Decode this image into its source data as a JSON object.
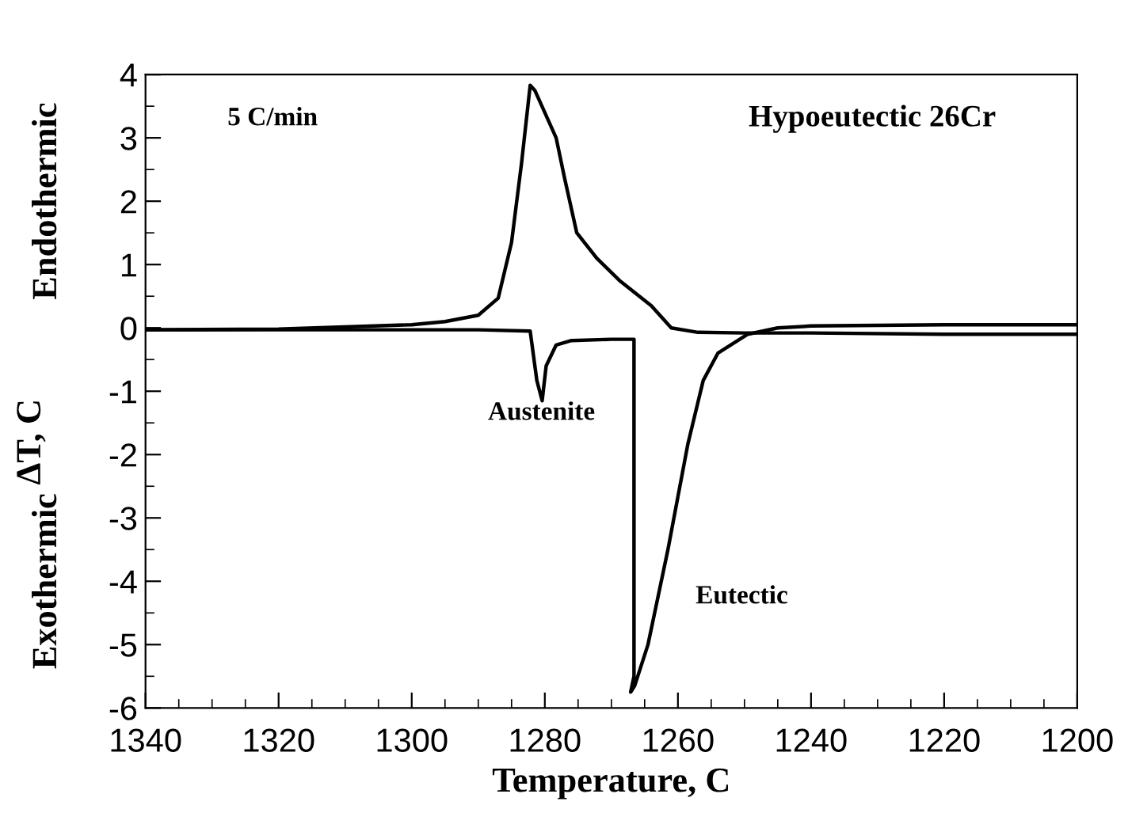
{
  "chart_data": {
    "type": "line",
    "xlabel": "Temperature, C",
    "ylabel": "ΔT, C",
    "xlim": [
      1340,
      1200
    ],
    "ylim": [
      -6,
      4
    ],
    "xticks": [
      1340,
      {
        "value": 1335,
        "label": null
      },
      {
        "value": 1330,
        "label": null
      },
      {
        "value": 1325,
        "label": null
      },
      1320,
      {
        "value": 1315,
        "label": null
      },
      {
        "value": 1310,
        "label": null
      },
      {
        "value": 1305,
        "label": null
      },
      1300,
      {
        "value": 1295,
        "label": null
      },
      {
        "value": 1290,
        "label": null
      },
      {
        "value": 1285,
        "label": null
      },
      1280,
      {
        "value": 1275,
        "label": null
      },
      {
        "value": 1270,
        "label": null
      },
      {
        "value": 1265,
        "label": null
      },
      1260,
      {
        "value": 1255,
        "label": null
      },
      {
        "value": 1250,
        "label": null
      },
      {
        "value": 1245,
        "label": null
      },
      1240,
      {
        "value": 1235,
        "label": null
      },
      {
        "value": 1230,
        "label": null
      },
      {
        "value": 1225,
        "label": null
      },
      1220,
      {
        "value": 1215,
        "label": null
      },
      {
        "value": 1210,
        "label": null
      },
      {
        "value": 1205,
        "label": null
      },
      1200
    ],
    "yticks": [
      -6,
      {
        "value": -5.5,
        "label": null
      },
      -5,
      {
        "value": -4.5,
        "label": null
      },
      -4,
      {
        "value": -3.5,
        "label": null
      },
      -3,
      {
        "value": -2.5,
        "label": null
      },
      -2,
      {
        "value": -1.5,
        "label": null
      },
      -1,
      {
        "value": -0.5,
        "label": null
      },
      0,
      {
        "value": 0.5,
        "label": null
      },
      1,
      {
        "value": 1.5,
        "label": null
      },
      2,
      {
        "value": 2.5,
        "label": null
      },
      3,
      {
        "value": 3.5,
        "label": null
      },
      4
    ],
    "grid": false,
    "legend": false,
    "marker": "none",
    "line_style": "solid",
    "series": [
      {
        "color": "#000000",
        "x": [
          1340,
          1320,
          1300,
          1295,
          1290,
          1287,
          1285,
          1283.5,
          1282.2,
          1281.5,
          1278.3,
          1277,
          1275.2,
          1272.2,
          1268.8,
          1264,
          1261,
          1257,
          1250,
          1240,
          1220,
          1200
        ],
        "values": [
          -0.03,
          -0.02,
          0.05,
          0.1,
          0.2,
          0.47,
          1.35,
          2.6,
          3.83,
          3.75,
          3.0,
          2.35,
          1.5,
          1.1,
          0.75,
          0.35,
          0,
          -0.07,
          -0.08,
          -0.08,
          -0.1,
          -0.1
        ]
      },
      {
        "color": "#000000",
        "x": [
          1340,
          1320,
          1300,
          1290,
          1282.2,
          1281.2,
          1280.4,
          1279.8,
          1278.3,
          1276,
          1270,
          1266.6,
          1266.6,
          1267.1,
          1266.5,
          1264.5,
          1261.5,
          1258.5,
          1256.2,
          1254,
          1249.5,
          1245,
          1240,
          1220,
          1200
        ],
        "values": [
          -0.03,
          -0.03,
          -0.03,
          -0.03,
          -0.05,
          -0.83,
          -1.15,
          -0.6,
          -0.27,
          -0.2,
          -0.18,
          -0.18,
          -5.5,
          -5.75,
          -5.65,
          -5.0,
          -3.5,
          -1.83,
          -0.83,
          -0.4,
          -0.1,
          0,
          0.03,
          0.05,
          0.05
        ]
      }
    ],
    "annotations": [
      "5 C/min",
      "Hypoeutectic 26Cr",
      "Endothermic",
      "Exothermic",
      "Austenite",
      "Eutectic"
    ]
  }
}
